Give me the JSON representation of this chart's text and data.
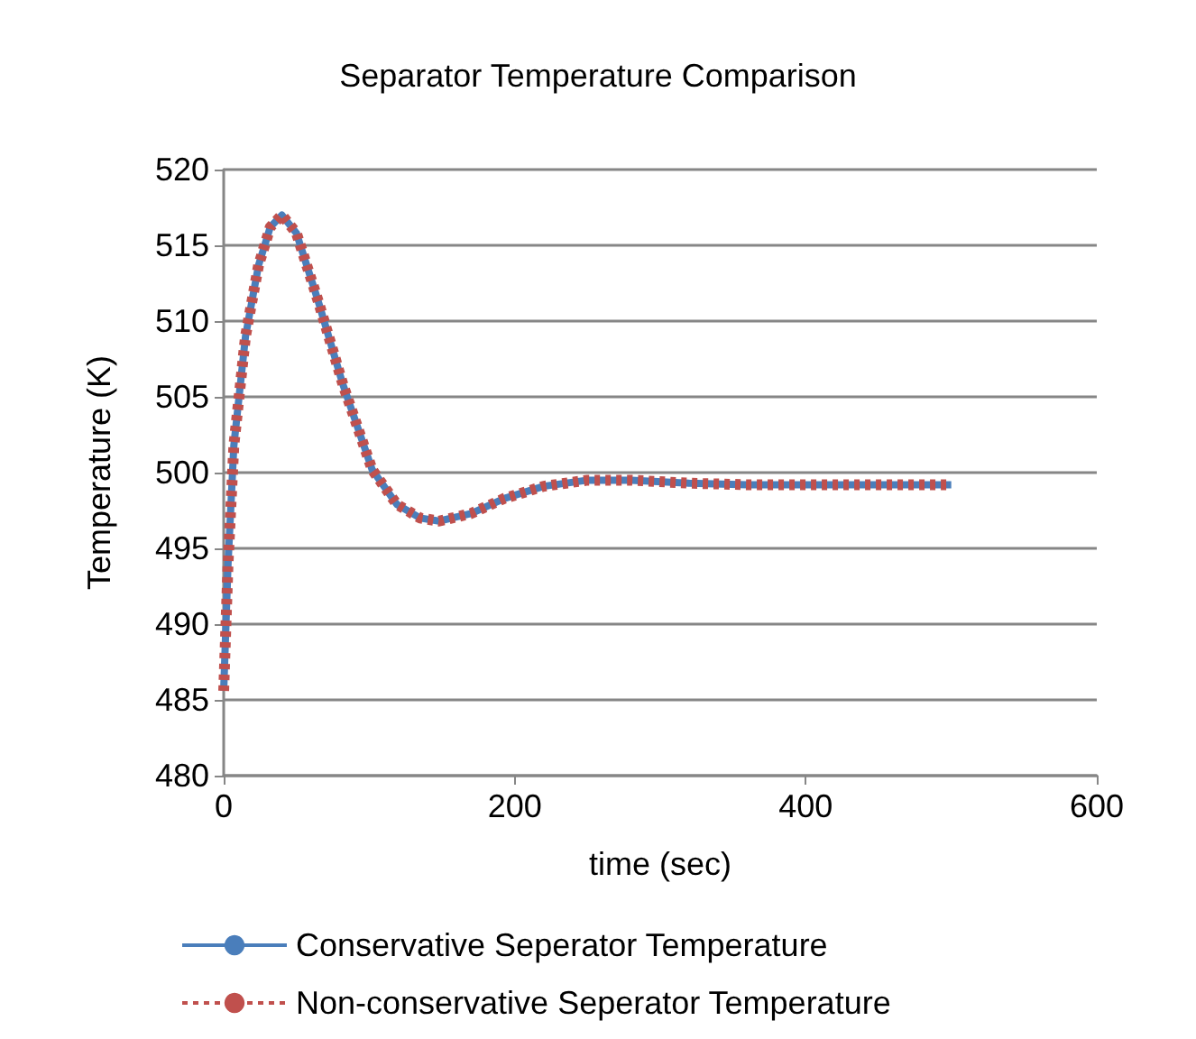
{
  "chart_data": {
    "type": "line",
    "title": "Separator Temperature Comparison",
    "xlabel": "time (sec)",
    "ylabel": "Temperature (K)",
    "xlim": [
      0,
      600
    ],
    "xticks": [
      0,
      200,
      400,
      600
    ],
    "ylim": [
      480,
      520
    ],
    "yticks": [
      480,
      485,
      490,
      495,
      500,
      505,
      510,
      515,
      520
    ],
    "grid": "y",
    "legend": "bottom",
    "marker": "none",
    "series": [
      {
        "name": "Conservative Seperator Temperature",
        "color": "#4a7ebb",
        "line_style": "solid",
        "x": [
          0,
          3,
          7,
          15,
          24,
          32,
          40,
          50,
          65,
          82,
          102,
          119,
          135,
          148,
          170,
          193,
          220,
          250,
          280,
          320,
          360,
          400,
          450,
          500
        ],
        "values": [
          485.6,
          494,
          501.8,
          509,
          513.7,
          516.2,
          517,
          515.8,
          511.3,
          505.8,
          500.2,
          497.9,
          497,
          496.8,
          497.3,
          498.3,
          499.1,
          499.5,
          499.5,
          499.3,
          499.2,
          499.2,
          499.2,
          499.2
        ]
      },
      {
        "name": "Non-conservative Seperator Temperature",
        "color": "#c0504d",
        "line_style": "dotted",
        "x": [
          0,
          3,
          7,
          15,
          24,
          32,
          40,
          50,
          65,
          82,
          102,
          119,
          135,
          148,
          170,
          193,
          220,
          250,
          280,
          320,
          360,
          400,
          450,
          500
        ],
        "values": [
          485.6,
          494,
          501.8,
          509,
          513.7,
          516.2,
          517,
          515.8,
          511.3,
          505.8,
          500.2,
          497.9,
          497,
          496.8,
          497.3,
          498.3,
          499.1,
          499.5,
          499.5,
          499.3,
          499.2,
          499.2,
          499.2,
          499.2
        ]
      }
    ]
  }
}
